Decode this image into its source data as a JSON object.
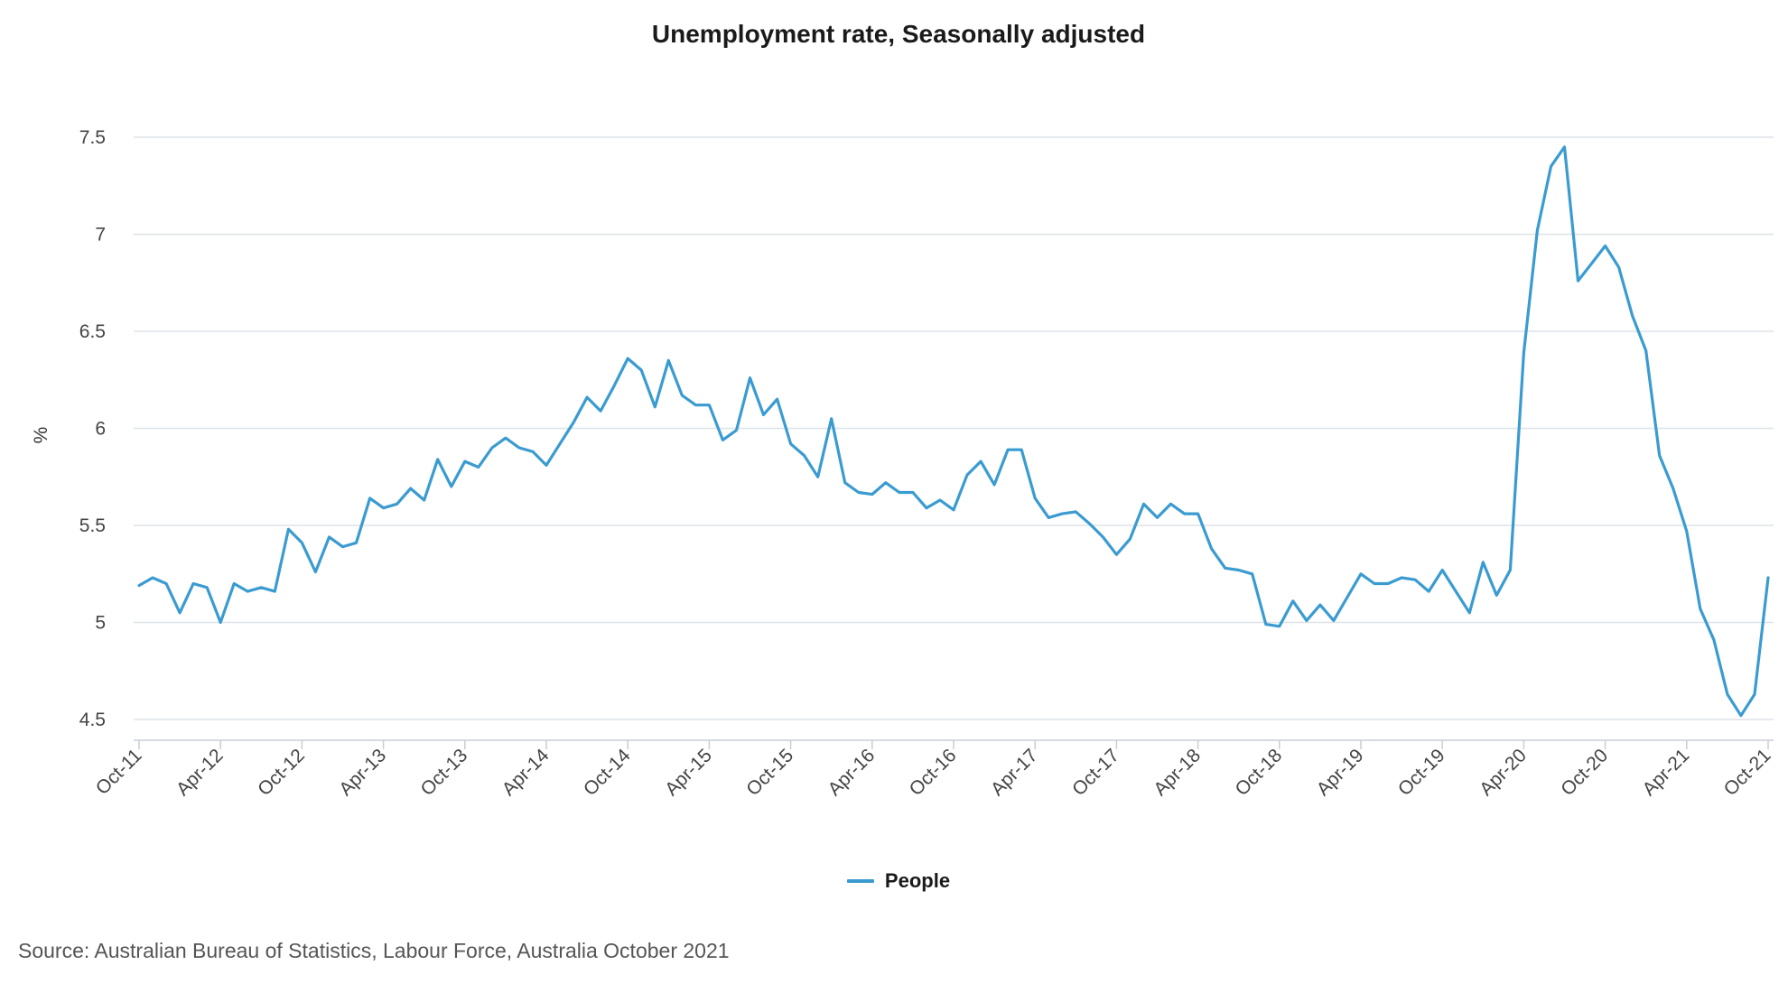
{
  "chart_data": {
    "type": "line",
    "title": "Unemployment rate, Seasonally adjusted",
    "ylabel": "%",
    "xlabel": "",
    "ylim": [
      4.5,
      7.5
    ],
    "yticks": [
      "7.5",
      "7",
      "6.5",
      "6",
      "5.5",
      "5",
      "4.5"
    ],
    "ytick_values": [
      7.5,
      7.0,
      6.5,
      6.0,
      5.5,
      5.0,
      4.5
    ],
    "xtick_labels": [
      "Oct-11",
      "Apr-12",
      "Oct-12",
      "Apr-13",
      "Oct-13",
      "Apr-14",
      "Oct-14",
      "Apr-15",
      "Oct-15",
      "Apr-16",
      "Oct-16",
      "Apr-17",
      "Oct-17",
      "Apr-18",
      "Oct-18",
      "Apr-19",
      "Oct-19",
      "Apr-20",
      "Oct-20",
      "Apr-21",
      "Oct-21"
    ],
    "x": [
      "Oct-11",
      "Nov-11",
      "Dec-11",
      "Jan-12",
      "Feb-12",
      "Mar-12",
      "Apr-12",
      "May-12",
      "Jun-12",
      "Jul-12",
      "Aug-12",
      "Sep-12",
      "Oct-12",
      "Nov-12",
      "Dec-12",
      "Jan-13",
      "Feb-13",
      "Mar-13",
      "Apr-13",
      "May-13",
      "Jun-13",
      "Jul-13",
      "Aug-13",
      "Sep-13",
      "Oct-13",
      "Nov-13",
      "Dec-13",
      "Jan-14",
      "Feb-14",
      "Mar-14",
      "Apr-14",
      "May-14",
      "Jun-14",
      "Jul-14",
      "Aug-14",
      "Sep-14",
      "Oct-14",
      "Nov-14",
      "Dec-14",
      "Jan-15",
      "Feb-15",
      "Mar-15",
      "Apr-15",
      "May-15",
      "Jun-15",
      "Jul-15",
      "Aug-15",
      "Sep-15",
      "Oct-15",
      "Nov-15",
      "Dec-15",
      "Jan-16",
      "Feb-16",
      "Mar-16",
      "Apr-16",
      "May-16",
      "Jun-16",
      "Jul-16",
      "Aug-16",
      "Sep-16",
      "Oct-16",
      "Nov-16",
      "Dec-16",
      "Jan-17",
      "Feb-17",
      "Mar-17",
      "Apr-17",
      "May-17",
      "Jun-17",
      "Jul-17",
      "Aug-17",
      "Sep-17",
      "Oct-17",
      "Nov-17",
      "Dec-17",
      "Jan-18",
      "Feb-18",
      "Mar-18",
      "Apr-18",
      "May-18",
      "Jun-18",
      "Jul-18",
      "Aug-18",
      "Sep-18",
      "Oct-18",
      "Nov-18",
      "Dec-18",
      "Jan-19",
      "Feb-19",
      "Mar-19",
      "Apr-19",
      "May-19",
      "Jun-19",
      "Jul-19",
      "Aug-19",
      "Sep-19",
      "Oct-19",
      "Nov-19",
      "Dec-19",
      "Jan-20",
      "Feb-20",
      "Mar-20",
      "Apr-20",
      "May-20",
      "Jun-20",
      "Jul-20",
      "Aug-20",
      "Sep-20",
      "Oct-20",
      "Nov-20",
      "Dec-20",
      "Jan-21",
      "Feb-21",
      "Mar-21",
      "Apr-21",
      "May-21",
      "Jun-21",
      "Jul-21",
      "Aug-21",
      "Sep-21",
      "Oct-21"
    ],
    "series": [
      {
        "name": "People",
        "color": "#3a9bd1",
        "values": [
          5.19,
          5.23,
          5.2,
          5.05,
          5.2,
          5.18,
          5.0,
          5.2,
          5.16,
          5.18,
          5.16,
          5.48,
          5.41,
          5.26,
          5.44,
          5.39,
          5.41,
          5.64,
          5.59,
          5.61,
          5.69,
          5.63,
          5.84,
          5.7,
          5.83,
          5.8,
          5.9,
          5.95,
          5.9,
          5.88,
          5.81,
          5.92,
          6.03,
          6.16,
          6.09,
          6.22,
          6.36,
          6.3,
          6.11,
          6.35,
          6.17,
          6.12,
          6.12,
          5.94,
          5.99,
          6.26,
          6.07,
          6.15,
          5.92,
          5.86,
          5.75,
          6.05,
          5.72,
          5.67,
          5.66,
          5.72,
          5.67,
          5.67,
          5.59,
          5.63,
          5.58,
          5.76,
          5.83,
          5.71,
          5.89,
          5.89,
          5.64,
          5.54,
          5.56,
          5.57,
          5.51,
          5.44,
          5.35,
          5.43,
          5.61,
          5.54,
          5.61,
          5.56,
          5.56,
          5.38,
          5.28,
          5.27,
          5.25,
          4.99,
          4.98,
          5.11,
          5.01,
          5.09,
          5.01,
          5.13,
          5.25,
          5.2,
          5.2,
          5.23,
          5.22,
          5.16,
          5.27,
          5.16,
          5.05,
          5.31,
          5.14,
          5.27,
          6.39,
          7.02,
          7.35,
          7.45,
          6.76,
          6.85,
          6.94,
          6.83,
          6.58,
          6.4,
          5.86,
          5.69,
          5.47,
          5.07,
          4.91,
          4.63,
          4.52,
          4.63,
          5.23
        ]
      }
    ],
    "grid": true,
    "legend_position": "bottom-center"
  },
  "legend": {
    "label": "People"
  },
  "source": "Source: Australian Bureau of Statistics, Labour Force, Australia October 2021"
}
